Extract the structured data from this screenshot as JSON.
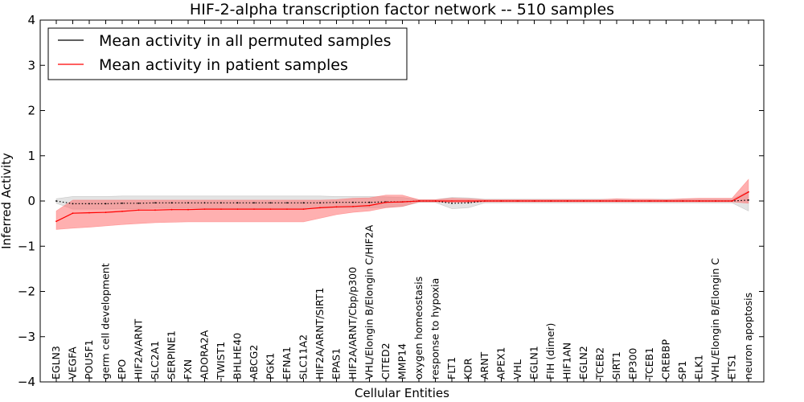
{
  "chart_data": {
    "type": "line",
    "title": "HIF-2-alpha transcription factor network -- 510 samples",
    "xlabel": "Cellular Entities",
    "ylabel": "Inferred Activity",
    "ylim": [
      -4,
      4
    ],
    "yticks": [
      -4,
      -3,
      -2,
      -1,
      0,
      1,
      2,
      3,
      4
    ],
    "ytick_labels": [
      "−4",
      "−3",
      "−2",
      "−1",
      "0",
      "1",
      "2",
      "3",
      "4"
    ],
    "categories": [
      "EGLN3",
      "VEGFA",
      "POU5F1",
      "germ cell development",
      "EPO",
      "HIF2A/ARNT",
      "SLC2A1",
      "SERPINE1",
      "FXN",
      "ADORA2A",
      "TWIST1",
      "BHLHE40",
      "ABCG2",
      "PGK1",
      "EFNA1",
      "SLC11A2",
      "HIF2A/ARNT/SIRT1",
      "EPAS1",
      "HIF2A/ARNT/Cbp/p300",
      "VHL/Elongin B/Elongin C/HIF2A",
      "CITED2",
      "MMP14",
      "oxygen homeostasis",
      "response to hypoxia",
      "FLT1",
      "KDR",
      "ARNT",
      "APEX1",
      "VHL",
      "EGLN1",
      "FIH (dimer)",
      "HIF1AN",
      "EGLN2",
      "TCEB2",
      "SIRT1",
      "EP300",
      "TCEB1",
      "CREBBP",
      "SP1",
      "ELK1",
      "VHL/Elongin B/Elongin C",
      "ETS1",
      "neuron apoptosis"
    ],
    "legend": {
      "location": "top-left",
      "entries": [
        "Mean activity in all permuted samples",
        "Mean activity in patient samples"
      ]
    },
    "series": [
      {
        "name": "Mean activity in all permuted samples",
        "color": "#000000",
        "band_color": "#b0b0b0",
        "mean": [
          0.0,
          -0.06,
          -0.06,
          -0.06,
          -0.05,
          -0.05,
          -0.04,
          -0.04,
          -0.04,
          -0.04,
          -0.04,
          -0.04,
          -0.04,
          -0.04,
          -0.04,
          -0.04,
          -0.04,
          -0.03,
          -0.03,
          -0.03,
          -0.02,
          -0.02,
          0.0,
          0.0,
          -0.05,
          -0.04,
          0.0,
          0.0,
          0.0,
          0.0,
          0.0,
          0.0,
          0.0,
          0.0,
          0.0,
          0.0,
          0.0,
          0.0,
          0.0,
          0.0,
          0.0,
          0.0,
          0.02
        ],
        "lower": [
          -0.05,
          -0.18,
          -0.18,
          -0.18,
          -0.17,
          -0.17,
          -0.16,
          -0.16,
          -0.16,
          -0.16,
          -0.16,
          -0.16,
          -0.16,
          -0.16,
          -0.16,
          -0.16,
          -0.16,
          -0.15,
          -0.15,
          -0.15,
          -0.14,
          -0.12,
          -0.03,
          -0.03,
          -0.17,
          -0.15,
          -0.04,
          -0.04,
          -0.04,
          -0.04,
          -0.04,
          -0.04,
          -0.04,
          -0.04,
          -0.04,
          -0.04,
          -0.04,
          -0.04,
          -0.04,
          -0.04,
          -0.04,
          -0.04,
          -0.22
        ],
        "upper": [
          0.05,
          0.1,
          0.1,
          0.1,
          0.11,
          0.11,
          0.11,
          0.11,
          0.11,
          0.11,
          0.11,
          0.11,
          0.11,
          0.11,
          0.11,
          0.11,
          0.11,
          0.1,
          0.1,
          0.1,
          0.09,
          0.08,
          0.03,
          0.03,
          0.08,
          0.07,
          0.04,
          0.04,
          0.04,
          0.04,
          0.04,
          0.04,
          0.04,
          0.04,
          0.04,
          0.04,
          0.04,
          0.04,
          0.04,
          0.04,
          0.04,
          0.04,
          0.22
        ]
      },
      {
        "name": "Mean activity in patient samples",
        "color": "#ff0000",
        "band_color": "#ff7070",
        "mean": [
          -0.45,
          -0.27,
          -0.26,
          -0.25,
          -0.23,
          -0.2,
          -0.2,
          -0.19,
          -0.19,
          -0.18,
          -0.18,
          -0.18,
          -0.18,
          -0.18,
          -0.18,
          -0.18,
          -0.15,
          -0.13,
          -0.12,
          -0.1,
          -0.03,
          -0.02,
          0.0,
          0.0,
          0.0,
          0.0,
          0.0,
          0.0,
          0.0,
          0.0,
          0.0,
          0.0,
          0.0,
          0.0,
          0.0,
          0.0,
          0.0,
          0.0,
          0.0,
          0.0,
          0.0,
          0.0,
          0.2
        ],
        "lower": [
          -0.63,
          -0.6,
          -0.58,
          -0.55,
          -0.52,
          -0.5,
          -0.48,
          -0.47,
          -0.46,
          -0.46,
          -0.46,
          -0.46,
          -0.46,
          -0.46,
          -0.46,
          -0.46,
          -0.38,
          -0.3,
          -0.25,
          -0.22,
          -0.15,
          -0.12,
          -0.02,
          -0.02,
          -0.03,
          -0.03,
          -0.02,
          -0.02,
          -0.02,
          -0.02,
          -0.02,
          -0.02,
          -0.02,
          -0.02,
          -0.02,
          -0.02,
          -0.02,
          -0.02,
          -0.02,
          -0.02,
          -0.02,
          -0.02,
          -0.05
        ],
        "upper": [
          -0.22,
          0.02,
          0.02,
          0.02,
          0.02,
          0.02,
          0.02,
          0.02,
          0.02,
          0.02,
          0.02,
          0.02,
          0.02,
          0.02,
          0.02,
          0.02,
          0.02,
          0.03,
          0.06,
          0.07,
          0.13,
          0.13,
          0.03,
          0.03,
          0.06,
          0.05,
          0.03,
          0.03,
          0.03,
          0.03,
          0.03,
          0.03,
          0.03,
          0.03,
          0.05,
          0.04,
          0.04,
          0.03,
          0.05,
          0.06,
          0.06,
          0.06,
          0.48
        ]
      }
    ]
  }
}
